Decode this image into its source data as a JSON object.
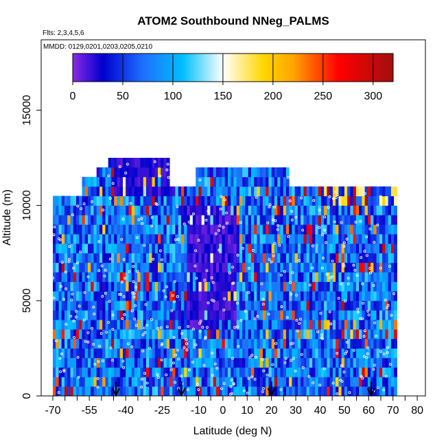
{
  "chart_data": {
    "type": "heatmap",
    "title": "ATOM2 Southbound NNeg_PALMS",
    "annotations": {
      "flights": "Flts: 2,3,4,5,6",
      "dates": "MMDD: 0129,0201,0203,0205,0210"
    },
    "xlabel": "Latitude (deg N)",
    "ylabel": "Altitude (m)",
    "xlim": [
      -70,
      85
    ],
    "ylim": [
      0,
      17500
    ],
    "x_ticks_major": [
      -70,
      -55,
      -40,
      -25,
      -10,
      0,
      10,
      20,
      30,
      40,
      50,
      60,
      70,
      80
    ],
    "x_ticks_minor": [
      -65,
      -60,
      -50,
      -45,
      -35,
      -30,
      -20,
      -15,
      -5,
      5,
      15,
      25,
      35,
      45,
      55,
      65,
      75,
      85
    ],
    "y_ticks": [
      0,
      5000,
      10000,
      15000
    ],
    "grid": false,
    "colorbar": {
      "range": [
        0,
        320
      ],
      "ticks": [
        0,
        50,
        100,
        150,
        200,
        250,
        300
      ],
      "stops": [
        {
          "value": 0,
          "color": "#8a2be2"
        },
        {
          "value": 30,
          "color": "#0000cd"
        },
        {
          "value": 70,
          "color": "#1e6fff"
        },
        {
          "value": 110,
          "color": "#00bfff"
        },
        {
          "value": 150,
          "color": "#ffffff"
        },
        {
          "value": 190,
          "color": "#ffd700"
        },
        {
          "value": 220,
          "color": "#ffa500"
        },
        {
          "value": 265,
          "color": "#ff0000"
        },
        {
          "value": 320,
          "color": "#a01010"
        }
      ]
    },
    "data_extent": {
      "lat_range": [
        -70,
        71
      ],
      "alt_range": [
        0,
        12500
      ]
    },
    "profile_latitudes": [
      -44,
      -17,
      20,
      61
    ],
    "colors": {
      "marker": "#ffffff",
      "arrow": "#000000"
    }
  }
}
